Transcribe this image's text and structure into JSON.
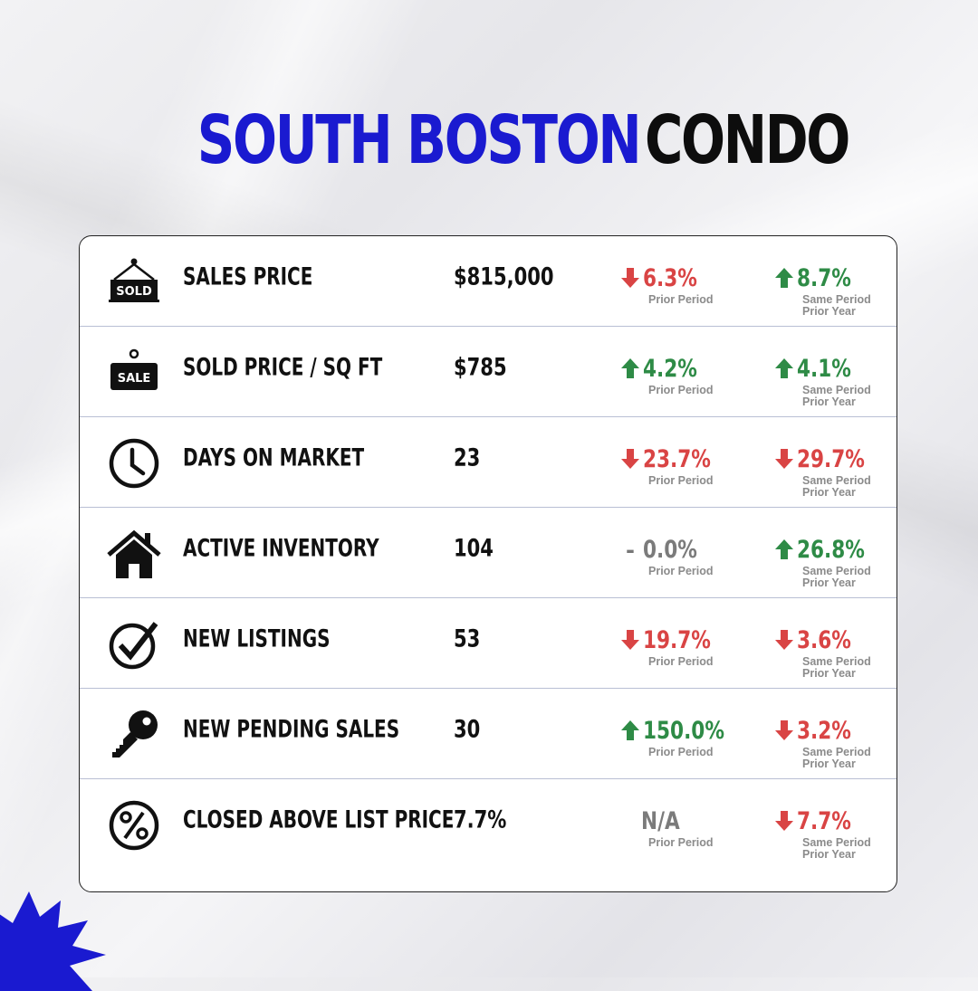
{
  "title": {
    "part1": "SOUTH BOSTON",
    "part2": "CONDO"
  },
  "colors": {
    "accent": "#1a1ad0",
    "up": "#2e8b46",
    "down": "#d94444",
    "neutral": "#7b7b7b"
  },
  "captions": {
    "prior_period": "Prior Period",
    "same_period_line1": "Same Period",
    "same_period_line2": "Prior Year"
  },
  "rows": [
    {
      "icon": "sold-sign-icon",
      "label": "SALES PRICE",
      "value": "$815,000",
      "prior": {
        "dir": "down",
        "pct": "6.3%"
      },
      "yoy": {
        "dir": "up",
        "pct": "8.7%"
      }
    },
    {
      "icon": "sale-sign-icon",
      "label": "SOLD PRICE / SQ FT",
      "value": "$785",
      "prior": {
        "dir": "up",
        "pct": "4.2%"
      },
      "yoy": {
        "dir": "up",
        "pct": "4.1%"
      }
    },
    {
      "icon": "clock-icon",
      "label": "DAYS ON MARKET",
      "value": "23",
      "prior": {
        "dir": "down",
        "pct": "23.7%"
      },
      "yoy": {
        "dir": "down",
        "pct": "29.7%"
      }
    },
    {
      "icon": "house-icon",
      "label": "ACTIVE INVENTORY",
      "value": "104",
      "prior": {
        "dir": "flat",
        "pct": "0.0%"
      },
      "yoy": {
        "dir": "up",
        "pct": "26.8%"
      }
    },
    {
      "icon": "checkmark-icon",
      "label": "NEW LISTINGS",
      "value": "53",
      "prior": {
        "dir": "down",
        "pct": "19.7%"
      },
      "yoy": {
        "dir": "down",
        "pct": "3.6%"
      }
    },
    {
      "icon": "key-icon",
      "label": "NEW PENDING SALES",
      "value": "30",
      "prior": {
        "dir": "up",
        "pct": "150.0%"
      },
      "yoy": {
        "dir": "down",
        "pct": "3.2%"
      }
    },
    {
      "icon": "percent-icon",
      "label": "CLOSED ABOVE LIST PRICE",
      "value": "7.7%",
      "prior": {
        "dir": "na",
        "pct": "N/A"
      },
      "yoy": {
        "dir": "down",
        "pct": "7.7%"
      }
    }
  ]
}
